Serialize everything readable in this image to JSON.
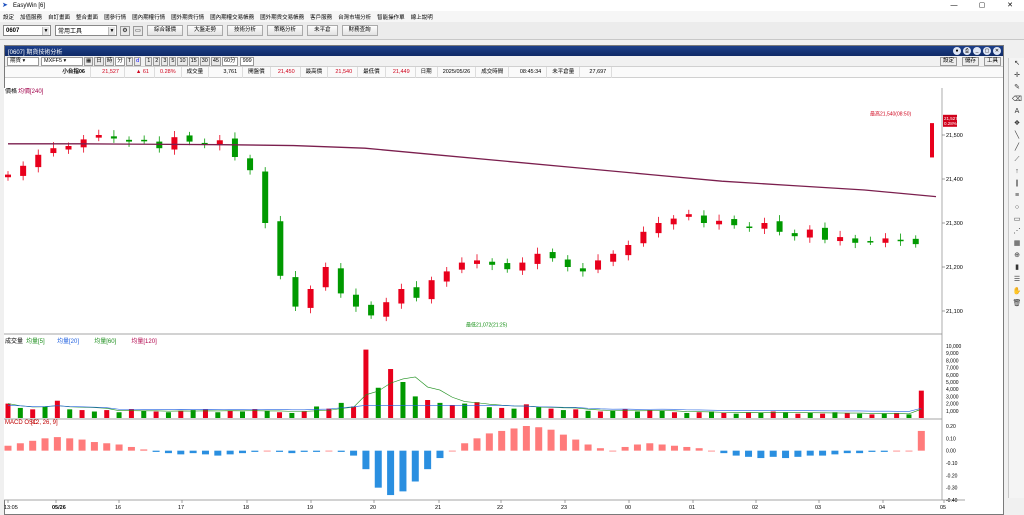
{
  "window": {
    "title": "EasyWin  [6]",
    "buttons": [
      "—",
      "▢",
      "✕"
    ]
  },
  "menu": [
    "設定",
    "加值服務",
    "自訂畫面",
    "整合畫面",
    "國參行情",
    "國內期權行情",
    "國外期貨行情",
    "國內期權交易帳務",
    "國外期貨交易帳務",
    "客戶服務",
    "台灣市場分析",
    "智能操作單",
    "線上說明"
  ],
  "toolbar": {
    "code": "0607",
    "tools_select": "常用工具",
    "buttons": [
      "綜合報價",
      "大盤走勢",
      "技術分析",
      "策略分析",
      "未平倉",
      "財務查詢"
    ]
  },
  "child": {
    "title": "[0607] 期貨技術分析",
    "type_select": "期貨",
    "symbol": "MXFF5",
    "periods": [
      "日",
      "時",
      "分",
      "T",
      "d"
    ],
    "minutes": [
      "1",
      "2",
      "3",
      "5",
      "10",
      "15",
      "30",
      "45"
    ],
    "minute_label": "60分",
    "count": "999",
    "right_buttons": [
      "設定",
      "儲存",
      "工具"
    ]
  },
  "quote": {
    "name": "小台指06",
    "last": "21,527",
    "change": "▲ 61",
    "pct": "0.28%",
    "vol_label": "成交量",
    "vol": "3,761",
    "open_label": "開盤價",
    "open": "21,450",
    "high_label": "最高價",
    "high": "21,540",
    "low_label": "最低價",
    "low": "21,449",
    "date_label": "日期",
    "date": "2025/05/26",
    "time_label": "成交時間",
    "time": "08:45:34",
    "oi_label": "未平倉量",
    "oi": "27,697"
  },
  "colors": {
    "up": "#e8001c",
    "down": "#009900",
    "ma": "#7b1f4e",
    "macd_pos": "#ff7b7b",
    "macd_neg": "#2a8fe0"
  },
  "chart_data": [
    {
      "type": "candlestick",
      "panel_label": "價格",
      "legend": "均價[240]",
      "ylim": [
        21050,
        21600
      ],
      "y_ticks": [
        "21,500",
        "21,400",
        "21,300",
        "21,200",
        "21,100"
      ],
      "high_annotation": "最高21,540(08:50)",
      "low_annotation": "最低21,072(21:25)",
      "last_tag": [
        "21,527",
        "0.28%"
      ],
      "x_ticks": [
        "13:05",
        "05/26",
        "16",
        "17",
        "18",
        "19",
        "20",
        "21",
        "22",
        "23",
        "00",
        "01",
        "02",
        "03",
        "04",
        "05"
      ],
      "ma240": [
        21480,
        21480,
        21479,
        21478,
        21476,
        21470,
        21455,
        21440,
        21425,
        21410,
        21395,
        21385,
        21375,
        21360
      ],
      "close_path": [
        21410,
        21430,
        21455,
        21470,
        21475,
        21490,
        21500,
        21492,
        21485,
        21488,
        21470,
        21495,
        21485,
        21480,
        21488,
        21450,
        21420,
        21300,
        21180,
        21110,
        21150,
        21200,
        21140,
        21110,
        21090,
        21120,
        21150,
        21130,
        21170,
        21190,
        21210,
        21215,
        21205,
        21195,
        21210,
        21230,
        21220,
        21200,
        21190,
        21215,
        21230,
        21250,
        21280,
        21300,
        21310,
        21320,
        21300,
        21305,
        21295,
        21290,
        21300,
        21280,
        21270,
        21285,
        21262,
        21268,
        21255,
        21258,
        21265,
        21260,
        21252
      ]
    },
    {
      "type": "bar",
      "panel_label": "成交量",
      "legend": [
        "均量[5]",
        "均量[20]",
        "均量[60]",
        "均量[120]"
      ],
      "y_ticks": [
        "10,000",
        "9,000",
        "8,000",
        "7,000",
        "6,000",
        "5,000",
        "4,000",
        "3,000",
        "2,000",
        "1,000"
      ],
      "ylim": [
        0,
        10000
      ],
      "values": [
        2000,
        1400,
        1200,
        1600,
        2400,
        1200,
        1100,
        900,
        1100,
        800,
        1200,
        1000,
        900,
        800,
        1000,
        1100,
        1200,
        800,
        1000,
        900,
        1200,
        1000,
        800,
        700,
        900,
        1600,
        1300,
        2100,
        1600,
        9500,
        4200,
        6800,
        5000,
        3000,
        2500,
        2100,
        1800,
        2000,
        2200,
        1500,
        1400,
        1300,
        1900,
        1500,
        1300,
        1100,
        1200,
        1000,
        900,
        1000,
        1200,
        900,
        1100,
        1000,
        800,
        700,
        800,
        900,
        700,
        600,
        800,
        700,
        900,
        800,
        600,
        700,
        600,
        800,
        700,
        600,
        500,
        600,
        700,
        500,
        3800
      ],
      "value_colors": [
        "u",
        "d",
        "u",
        "d",
        "u",
        "d",
        "u",
        "d",
        "u",
        "d",
        "u",
        "d",
        "u",
        "d",
        "u",
        "d",
        "u",
        "d",
        "u",
        "d",
        "u",
        "d",
        "u",
        "d",
        "u",
        "d",
        "u",
        "d",
        "u",
        "u",
        "d",
        "u",
        "d",
        "d",
        "u",
        "d",
        "u",
        "d",
        "u",
        "d",
        "u",
        "d",
        "u",
        "d",
        "u",
        "d",
        "u",
        "d",
        "u",
        "d",
        "u",
        "d",
        "u",
        "d",
        "u",
        "d",
        "u",
        "d",
        "u",
        "d",
        "u",
        "d",
        "u",
        "d",
        "u",
        "d",
        "u",
        "d",
        "u",
        "d",
        "u",
        "d",
        "u",
        "d",
        "u"
      ]
    },
    {
      "type": "bar",
      "panel_label": "MACD OSC",
      "legend": "[12, 26, 9]",
      "ylim": [
        -0.4,
        0.2
      ],
      "y_ticks": [
        "0.20",
        "0.10",
        "0.00",
        "-0.10",
        "-0.20",
        "-0.30",
        "-0.40"
      ],
      "values": [
        0.04,
        0.06,
        0.08,
        0.1,
        0.11,
        0.1,
        0.09,
        0.07,
        0.06,
        0.05,
        0.03,
        0.01,
        -0.01,
        -0.02,
        -0.03,
        -0.02,
        -0.03,
        -0.04,
        -0.03,
        -0.02,
        -0.01,
        0.0,
        -0.01,
        -0.02,
        -0.01,
        -0.01,
        0.0,
        -0.01,
        -0.04,
        -0.15,
        -0.3,
        -0.36,
        -0.33,
        -0.25,
        -0.15,
        -0.06,
        0.0,
        0.06,
        0.1,
        0.14,
        0.16,
        0.18,
        0.2,
        0.19,
        0.17,
        0.13,
        0.09,
        0.05,
        0.02,
        0.0,
        0.03,
        0.05,
        0.06,
        0.05,
        0.04,
        0.03,
        0.02,
        0.0,
        -0.02,
        -0.04,
        -0.05,
        -0.06,
        -0.05,
        -0.06,
        -0.05,
        -0.04,
        -0.04,
        -0.03,
        -0.02,
        -0.02,
        -0.01,
        -0.01,
        0.0,
        0.0,
        0.16
      ]
    }
  ]
}
